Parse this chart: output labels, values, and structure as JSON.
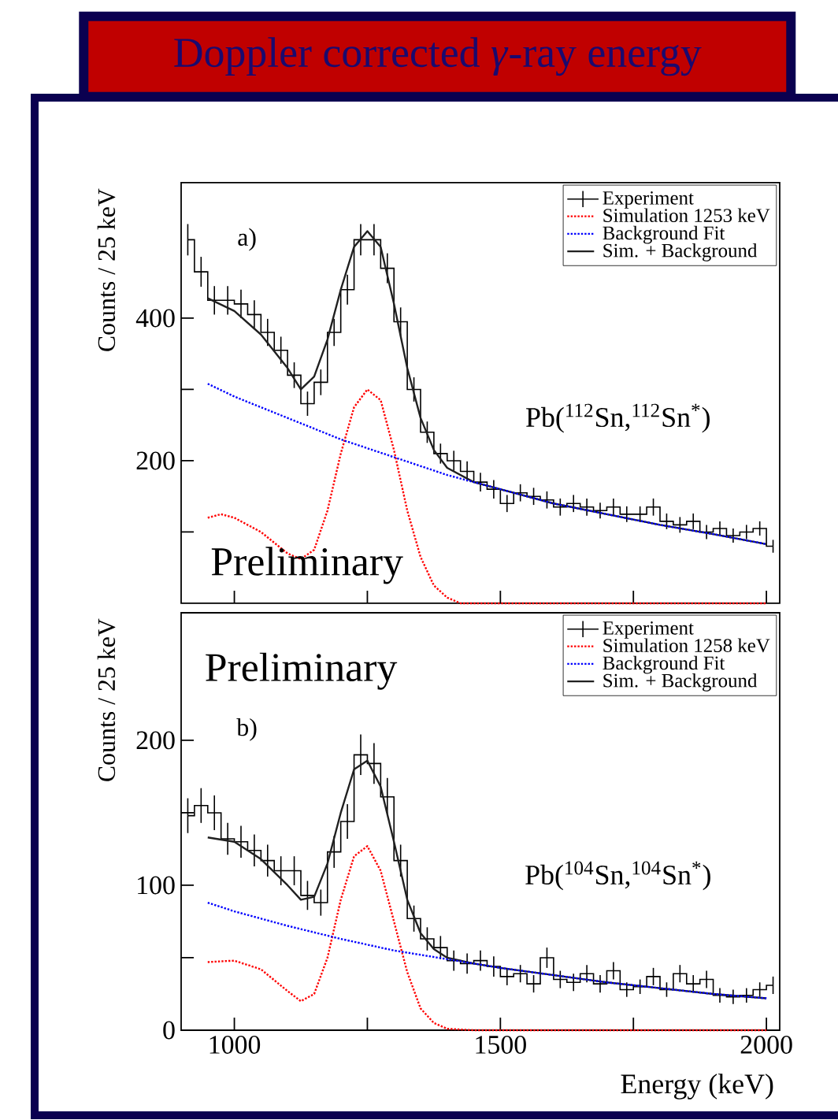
{
  "chart_data": [
    {
      "type": "step",
      "title": "Doppler corrected *γ*-ray energy",
      "ylabel": "Counts / 25 keV",
      "annotations": [
        "a)",
        "Pb($^{112}$Sn,$^{112}$Sn$^{*}$)",
        "Preliminary"
      ],
      "xlim": [
        900,
        2025
      ],
      "ylim": [
        0,
        590
      ],
      "xticks": [
        1000,
        1500,
        2000
      ],
      "yticks": [
        {
          "value": 100,
          "label": null
        },
        200,
        {
          "value": 300,
          "label": null
        },
        400
      ],
      "tick_labels": "y",
      "legend": "top right",
      "series": [
        {
          "name": "Experiment",
          "color": "#000000",
          "x": [
            912.5,
            937.5,
            962.5,
            987.5,
            1012.5,
            1037.5,
            1062.5,
            1087.5,
            1112.5,
            1137.5,
            1162.5,
            1187.5,
            1212.5,
            1237.5,
            1262.5,
            1287.5,
            1312.5,
            1337.5,
            1362.5,
            1387.5,
            1412.5,
            1437.5,
            1462.5,
            1487.5,
            1512.5,
            1537.5,
            1562.5,
            1587.5,
            1612.5,
            1637.5,
            1662.5,
            1687.5,
            1712.5,
            1737.5,
            1762.5,
            1787.5,
            1812.5,
            1837.5,
            1862.5,
            1887.5,
            1912.5,
            1937.5,
            1962.5,
            1987.5,
            2012.5
          ],
          "values": [
            510,
            465,
            425,
            425,
            420,
            405,
            380,
            355,
            320,
            280,
            310,
            380,
            440,
            510,
            510,
            470,
            395,
            300,
            240,
            210,
            200,
            185,
            170,
            160,
            140,
            155,
            150,
            145,
            135,
            140,
            135,
            130,
            135,
            125,
            125,
            135,
            115,
            110,
            115,
            100,
            105,
            95,
            100,
            105,
            80
          ],
          "errors": [
            22,
            21,
            20,
            20,
            20,
            20,
            19,
            19,
            18,
            17,
            18,
            19,
            21,
            22,
            22,
            21,
            20,
            17,
            15,
            14,
            14,
            14,
            13,
            13,
            12,
            12,
            12,
            12,
            12,
            12,
            12,
            11,
            12,
            11,
            11,
            12,
            11,
            11,
            11,
            10,
            10,
            10,
            10,
            10,
            9
          ]
        },
        {
          "name": "Simulation 1253 keV",
          "type": "line",
          "color": "#ff0000",
          "line_style": "dotted",
          "x": [
            950,
            975,
            1000,
            1050,
            1100,
            1125,
            1150,
            1175,
            1200,
            1225,
            1250,
            1275,
            1300,
            1325,
            1350,
            1375,
            1400,
            1425,
            1500,
            1600,
            1700,
            1800,
            1900,
            2000
          ],
          "values": [
            120,
            125,
            120,
            100,
            70,
            62,
            75,
            130,
            210,
            275,
            300,
            285,
            215,
            130,
            65,
            25,
            8,
            0,
            0,
            0,
            0,
            0,
            0,
            0
          ]
        },
        {
          "name": "Background Fit",
          "type": "line",
          "color": "#0000ff",
          "line_style": "dotted",
          "x": [
            950,
            1000,
            1100,
            1200,
            1300,
            1400,
            1500,
            1600,
            1700,
            1800,
            1900,
            2000
          ],
          "values": [
            308,
            290,
            260,
            230,
            205,
            180,
            160,
            140,
            125,
            110,
            97,
            83
          ]
        },
        {
          "name": "Sim. + Background",
          "type": "line",
          "color": "#202020",
          "line_style": "solid",
          "x": [
            950,
            1000,
            1050,
            1100,
            1125,
            1150,
            1175,
            1200,
            1225,
            1250,
            1275,
            1300,
            1325,
            1350,
            1375,
            1400,
            1450,
            1500,
            1600,
            1700,
            1800,
            1900,
            2000
          ],
          "values": [
            428,
            410,
            377,
            330,
            300,
            318,
            370,
            440,
            500,
            522,
            500,
            420,
            330,
            260,
            215,
            190,
            170,
            160,
            140,
            125,
            110,
            97,
            83
          ]
        }
      ]
    },
    {
      "type": "step",
      "xlabel": "Energy (keV)",
      "ylabel": "Counts / 25 keV",
      "annotations": [
        "b)",
        "Pb($^{104}$Sn,$^{104}$Sn$^{*}$)",
        "Preliminary"
      ],
      "xlim": [
        900,
        2025
      ],
      "ylim": [
        0,
        288
      ],
      "xticks": [
        1000,
        1500,
        2000
      ],
      "yticks": [
        0,
        {
          "value": 50,
          "label": null
        },
        100,
        {
          "value": 150,
          "label": null
        },
        200
      ],
      "legend": "top right",
      "series": [
        {
          "name": "Experiment",
          "color": "#000000",
          "x": [
            912.5,
            937.5,
            962.5,
            987.5,
            1012.5,
            1037.5,
            1062.5,
            1087.5,
            1112.5,
            1137.5,
            1162.5,
            1187.5,
            1212.5,
            1237.5,
            1262.5,
            1287.5,
            1312.5,
            1337.5,
            1362.5,
            1387.5,
            1412.5,
            1437.5,
            1462.5,
            1487.5,
            1512.5,
            1537.5,
            1562.5,
            1587.5,
            1612.5,
            1637.5,
            1662.5,
            1687.5,
            1712.5,
            1737.5,
            1762.5,
            1787.5,
            1812.5,
            1837.5,
            1862.5,
            1887.5,
            1912.5,
            1937.5,
            1962.5,
            1987.5,
            2012.5
          ],
          "values": [
            148,
            155,
            150,
            132,
            130,
            124,
            117,
            110,
            110,
            93,
            88,
            123,
            144,
            190,
            184,
            161,
            117,
            77,
            63,
            57,
            48,
            46,
            48,
            44,
            37,
            39,
            32,
            50,
            35,
            33,
            39,
            32,
            41,
            28,
            30,
            37,
            28,
            39,
            32,
            35,
            24,
            23,
            24,
            28,
            31
          ],
          "errors": [
            12,
            12,
            12,
            11,
            11,
            11,
            11,
            10,
            10,
            10,
            9,
            11,
            12,
            14,
            14,
            13,
            11,
            9,
            8,
            8,
            7,
            7,
            7,
            7,
            6,
            6,
            6,
            7,
            6,
            6,
            6,
            6,
            6,
            5,
            5,
            6,
            5,
            6,
            6,
            6,
            5,
            5,
            5,
            5,
            6
          ]
        },
        {
          "name": "Simulation 1258 keV",
          "type": "line",
          "color": "#ff0000",
          "line_style": "dotted",
          "x": [
            950,
            1000,
            1050,
            1100,
            1125,
            1150,
            1175,
            1200,
            1225,
            1250,
            1275,
            1300,
            1325,
            1350,
            1375,
            1400,
            1450,
            1500,
            1600,
            1700,
            1800,
            1900,
            2000
          ],
          "values": [
            47,
            48,
            42,
            27,
            20,
            25,
            50,
            90,
            120,
            127,
            110,
            75,
            40,
            15,
            5,
            1,
            0,
            0,
            0,
            0,
            0,
            0,
            0
          ]
        },
        {
          "name": "Background Fit",
          "type": "line",
          "color": "#0000ff",
          "line_style": "dotted",
          "x": [
            950,
            1000,
            1100,
            1200,
            1300,
            1400,
            1500,
            1600,
            1700,
            1800,
            1900,
            2000
          ],
          "values": [
            88,
            82,
            72,
            63,
            55,
            49,
            43,
            38,
            33,
            29,
            25,
            22
          ]
        },
        {
          "name": "Sim. + Background",
          "type": "line",
          "color": "#202020",
          "line_style": "solid",
          "x": [
            950,
            1000,
            1050,
            1100,
            1125,
            1150,
            1175,
            1200,
            1225,
            1250,
            1275,
            1300,
            1325,
            1350,
            1375,
            1400,
            1450,
            1500,
            1600,
            1700,
            1800,
            1900,
            2000
          ],
          "values": [
            133,
            130,
            118,
            100,
            90,
            92,
            115,
            150,
            180,
            186,
            168,
            130,
            90,
            67,
            56,
            50,
            46,
            43,
            38,
            33,
            29,
            25,
            22
          ]
        }
      ]
    }
  ]
}
